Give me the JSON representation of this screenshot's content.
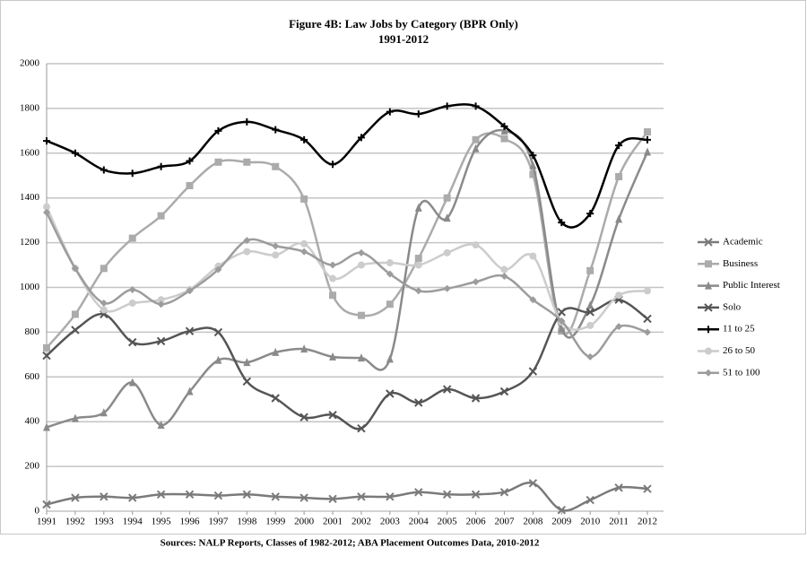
{
  "chart_data": {
    "type": "line",
    "title": "Figure 4B: Law Jobs by Category (BPR Only)",
    "subtitle": "1991-2012",
    "source": "Sources: NALP Reports, Classes of 1982-2012; ABA Placement Outcomes Data, 2010-2012",
    "categories": [
      "1991",
      "1992",
      "1993",
      "1994",
      "1995",
      "1996",
      "1997",
      "1998",
      "1999",
      "2000",
      "2001",
      "2002",
      "2003",
      "2004",
      "2005",
      "2006",
      "2007",
      "2008",
      "2009",
      "2010",
      "2011",
      "2012"
    ],
    "ylim": [
      0,
      2000
    ],
    "yticks": [
      0,
      200,
      400,
      600,
      800,
      1000,
      1200,
      1400,
      1600,
      1800,
      2000
    ],
    "grid": true,
    "smooth": true,
    "legend": "right",
    "series": [
      {
        "name": "Academic",
        "color": "#7a7a7a",
        "marker": "x",
        "values": [
          30,
          60,
          65,
          60,
          75,
          75,
          70,
          75,
          65,
          60,
          55,
          65,
          65,
          85,
          75,
          75,
          85,
          125,
          5,
          50,
          105,
          100
        ]
      },
      {
        "name": "Business",
        "color": "#ababab",
        "marker": "square",
        "values": [
          730,
          880,
          1085,
          1220,
          1320,
          1455,
          1560,
          1560,
          1540,
          1395,
          965,
          875,
          925,
          1130,
          1400,
          1660,
          1665,
          1505,
          805,
          1075,
          1495,
          1695
        ]
      },
      {
        "name": "Public Interest",
        "color": "#8a8a8a",
        "marker": "triangle",
        "values": [
          375,
          415,
          440,
          575,
          385,
          535,
          675,
          665,
          710,
          725,
          690,
          685,
          680,
          1355,
          1310,
          1620,
          1700,
          1545,
          815,
          920,
          1305,
          1605
        ]
      },
      {
        "name": "Solo",
        "color": "#555555",
        "marker": "x",
        "values": [
          695,
          810,
          880,
          755,
          760,
          805,
          800,
          580,
          505,
          420,
          430,
          370,
          525,
          485,
          545,
          505,
          535,
          625,
          890,
          890,
          945,
          860
        ]
      },
      {
        "name": "11 to 25",
        "color": "#000000",
        "marker": "plus",
        "values": [
          1655,
          1600,
          1525,
          1510,
          1540,
          1565,
          1700,
          1740,
          1705,
          1660,
          1550,
          1670,
          1785,
          1775,
          1810,
          1810,
          1720,
          1590,
          1290,
          1330,
          1635,
          1660
        ]
      },
      {
        "name": "26 to 50",
        "color": "#cccccc",
        "marker": "circle",
        "values": [
          1360,
          1085,
          900,
          930,
          945,
          990,
          1095,
          1160,
          1145,
          1195,
          1040,
          1100,
          1110,
          1100,
          1155,
          1190,
          1080,
          1140,
          845,
          830,
          965,
          985
        ]
      },
      {
        "name": "51 to 100",
        "color": "#9c9c9c",
        "marker": "diamond",
        "values": [
          1335,
          1085,
          930,
          990,
          925,
          985,
          1080,
          1210,
          1185,
          1160,
          1100,
          1155,
          1060,
          985,
          995,
          1025,
          1050,
          945,
          850,
          690,
          825,
          800
        ]
      }
    ]
  }
}
